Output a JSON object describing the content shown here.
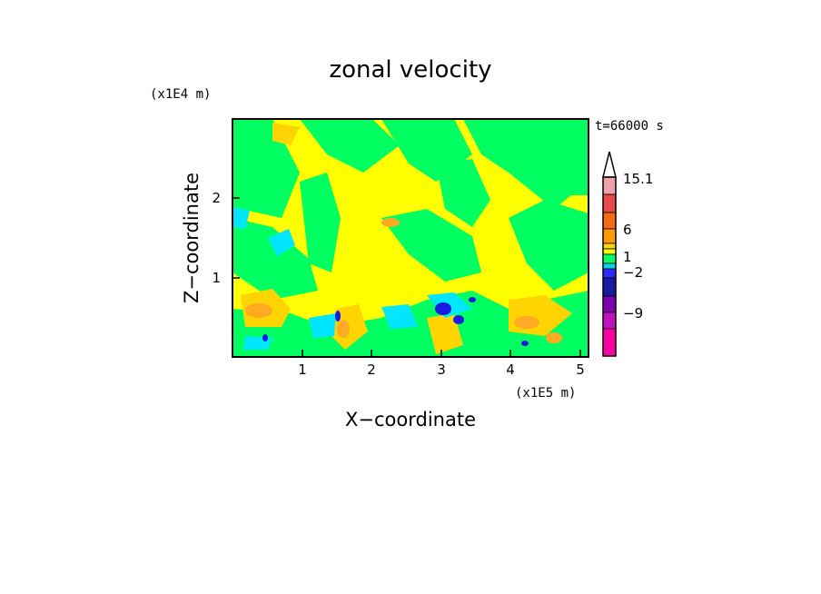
{
  "chart_data": {
    "type": "heatmap",
    "title": "zonal velocity",
    "xlabel": "X−coordinate",
    "ylabel": "Z−coordinate",
    "x_unit": "(x1E5 m)",
    "y_unit": "(x1E4 m)",
    "time_label": "t=66000 s",
    "xlim": [
      0,
      5.15
    ],
    "ylim": [
      0,
      2.95
    ],
    "x_ticks": [
      "1",
      "2",
      "3",
      "4",
      "5"
    ],
    "y_ticks": [
      "1",
      "2"
    ],
    "colorbar": {
      "labels": [
        "15.1",
        "6",
        "1",
        "−2",
        "−9"
      ],
      "colors": [
        "#f0a0a8",
        "#e84a4a",
        "#f26a14",
        "#ff9a00",
        "#ffd400",
        "#f5ff00",
        "#00ff66",
        "#00d7e6",
        "#2a2aff",
        "#1a1aa0",
        "#8000b0",
        "#c010c0",
        "#ff00a0"
      ]
    },
    "field_colors": {
      "background_yellow": "#ffff00",
      "green": "#00ff60",
      "light_orange": "#ffd400",
      "orange": "#ffaa22",
      "cyan": "#00e6ff",
      "blue": "#1a1ae0",
      "magenta": "#e000e0"
    }
  }
}
